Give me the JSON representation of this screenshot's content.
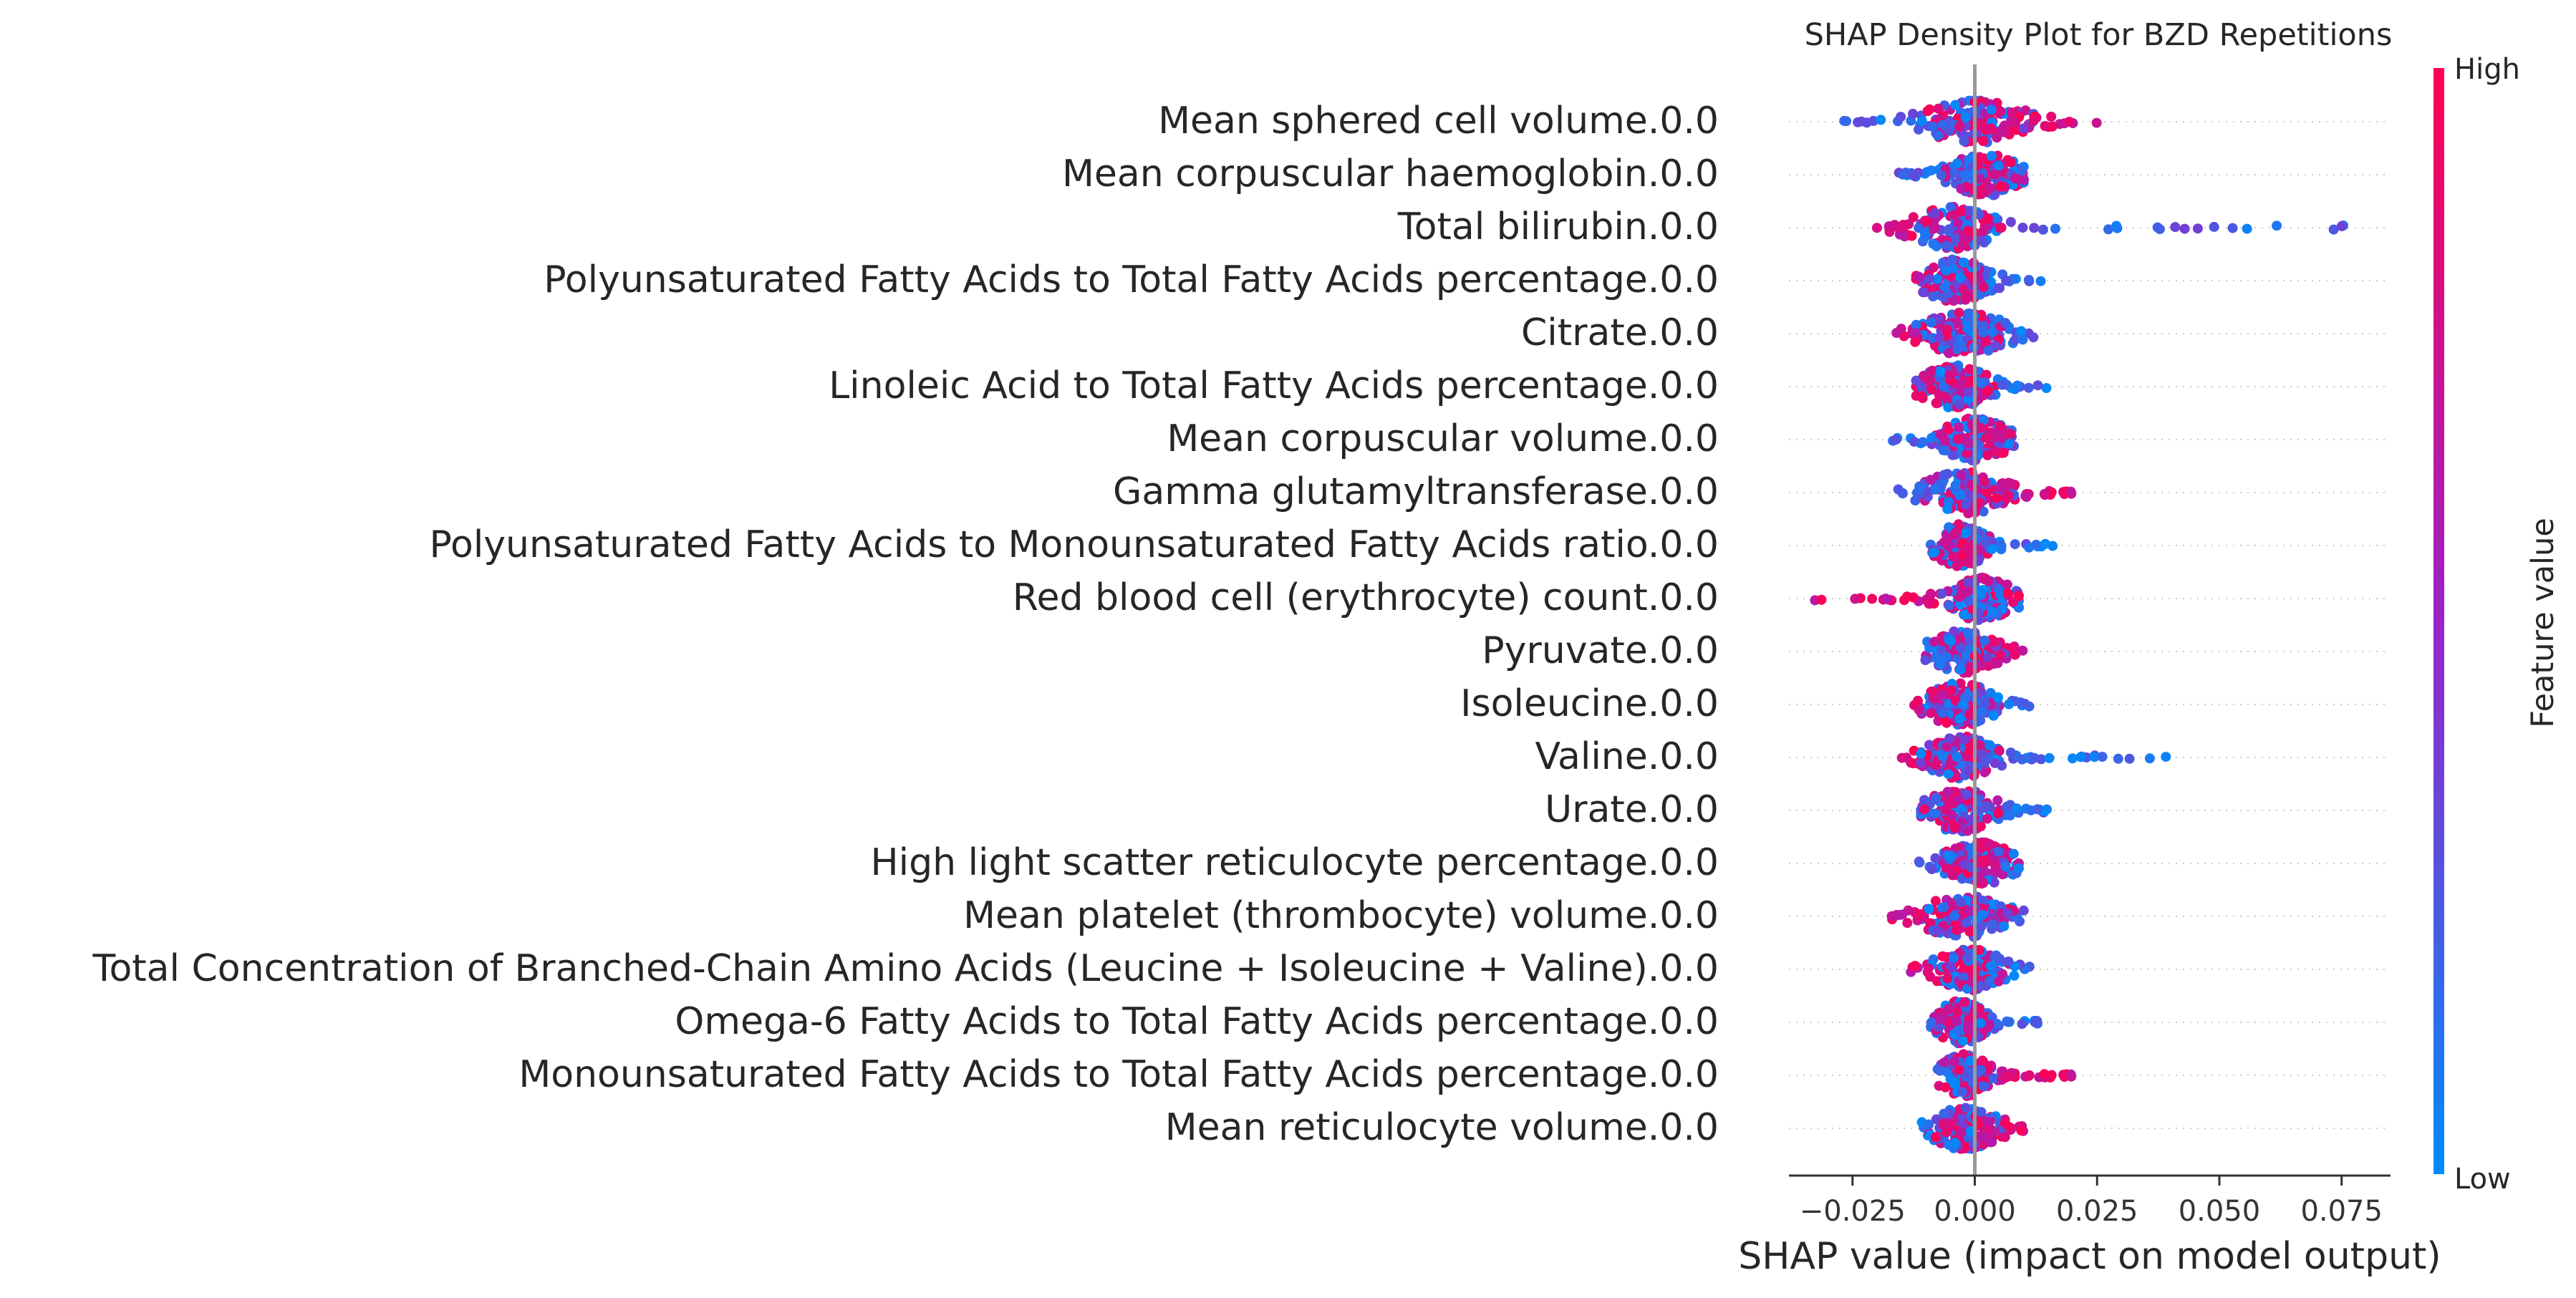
{
  "chart_data": {
    "type": "scatter",
    "subtype": "shap-beeswarm",
    "title": "SHAP Density Plot for BZD Repetitions",
    "xlabel": "SHAP value (impact on model output)",
    "xlim": [
      -0.038,
      0.085
    ],
    "xticks": [
      -0.025,
      0.0,
      0.025,
      0.05,
      0.075
    ],
    "xtick_labels": [
      "−0.025",
      "0.000",
      "0.025",
      "0.050",
      "0.075"
    ],
    "colorbar": {
      "label": "Feature value",
      "high_label": "High",
      "low_label": "Low",
      "high_color": "#ff0052",
      "mid_color": "#9b23c8",
      "low_color": "#008bfb"
    },
    "grid": false,
    "features": [
      {
        "name": "Mean sphered cell volume.0.0",
        "low_range": [
          -0.032,
          0.0
        ],
        "high_range": [
          0.0,
          0.025
        ],
        "dir": 1,
        "center": 0.0,
        "width": 0.006
      },
      {
        "name": "Mean corpuscular haemoglobin.0.0",
        "low_range": [
          -0.02,
          0.001
        ],
        "high_range": [
          0.0,
          0.01
        ],
        "dir": 1,
        "center": 0.002,
        "width": 0.004
      },
      {
        "name": "Total bilirubin.0.0",
        "low_range": [
          -0.003,
          0.079
        ],
        "high_range": [
          -0.02,
          -0.002
        ],
        "dir": -1,
        "center": -0.004,
        "width": 0.005
      },
      {
        "name": "Polyunsaturated Fatty Acids to Total Fatty Acids percentage.0.0",
        "low_range": [
          0.0,
          0.015
        ],
        "high_range": [
          -0.01,
          0.0
        ],
        "dir": -1,
        "center": -0.004,
        "width": 0.004
      },
      {
        "name": "Citrate.0.0",
        "low_range": [
          -0.002,
          0.012
        ],
        "high_range": [
          -0.016,
          0.0
        ],
        "dir": -1,
        "center": -0.002,
        "width": 0.005
      },
      {
        "name": "Linoleic Acid to Total Fatty Acids percentage.0.0",
        "low_range": [
          0.0,
          0.018
        ],
        "high_range": [
          -0.012,
          0.0
        ],
        "dir": -1,
        "center": -0.004,
        "width": 0.004
      },
      {
        "name": "Mean corpuscular volume.0.0",
        "low_range": [
          -0.017,
          0.001
        ],
        "high_range": [
          0.0,
          0.006
        ],
        "dir": 1,
        "center": 0.0,
        "width": 0.004
      },
      {
        "name": "Gamma glutamyltransferase.0.0",
        "low_range": [
          -0.016,
          0.0
        ],
        "high_range": [
          0.0,
          0.02
        ],
        "dir": 1,
        "center": -0.002,
        "width": 0.005
      },
      {
        "name": "Polyunsaturated Fatty Acids to Monounsaturated Fatty Acids ratio.0.0",
        "low_range": [
          0.0,
          0.016
        ],
        "high_range": [
          -0.006,
          0.0
        ],
        "dir": -1,
        "center": -0.003,
        "width": 0.003
      },
      {
        "name": "Red blood cell (erythrocyte) count.0.0",
        "low_range": [
          0.0,
          0.006
        ],
        "high_range": [
          -0.033,
          0.0
        ],
        "dir": -1,
        "center": 0.001,
        "width": 0.004
      },
      {
        "name": "Pyruvate.0.0",
        "low_range": [
          -0.012,
          0.0
        ],
        "high_range": [
          0.0,
          0.011
        ],
        "dir": 1,
        "center": -0.002,
        "width": 0.004
      },
      {
        "name": "Isoleucine.0.0",
        "low_range": [
          0.0,
          0.012
        ],
        "high_range": [
          -0.013,
          0.0
        ],
        "dir": -1,
        "center": -0.003,
        "width": 0.004
      },
      {
        "name": "Valine.0.0",
        "low_range": [
          0.0,
          0.041
        ],
        "high_range": [
          -0.015,
          0.0
        ],
        "dir": -1,
        "center": -0.003,
        "width": 0.004
      },
      {
        "name": "Urate.0.0",
        "low_range": [
          0.0,
          0.015
        ],
        "high_range": [
          -0.009,
          0.0
        ],
        "dir": -1,
        "center": -0.003,
        "width": 0.004
      },
      {
        "name": "High light scatter reticulocyte percentage.0.0",
        "low_range": [
          -0.013,
          0.001
        ],
        "high_range": [
          0.0,
          0.007
        ],
        "dir": 1,
        "center": 0.001,
        "width": 0.004
      },
      {
        "name": "Mean platelet (thrombocyte) volume.0.0",
        "low_range": [
          0.0,
          0.01
        ],
        "high_range": [
          -0.017,
          0.0
        ],
        "dir": -1,
        "center": -0.002,
        "width": 0.005
      },
      {
        "name": "Total Concentration of Branched-Chain Amino Acids (Leucine + Isoleucine + Valine).0.0",
        "low_range": [
          0.0,
          0.012
        ],
        "high_range": [
          -0.014,
          0.0
        ],
        "dir": -1,
        "center": -0.001,
        "width": 0.004
      },
      {
        "name": "Omega-6 Fatty Acids to Total Fatty Acids percentage.0.0",
        "low_range": [
          0.0,
          0.013
        ],
        "high_range": [
          -0.007,
          0.0
        ],
        "dir": -1,
        "center": -0.003,
        "width": 0.003
      },
      {
        "name": "Monounsaturated Fatty Acids to Total Fatty Acids percentage.0.0",
        "low_range": [
          -0.005,
          0.0
        ],
        "high_range": [
          0.0,
          0.02
        ],
        "dir": 1,
        "center": -0.002,
        "width": 0.003
      },
      {
        "name": "Mean reticulocyte volume.0.0",
        "low_range": [
          -0.012,
          0.0
        ],
        "high_range": [
          0.0,
          0.01
        ],
        "dir": 1,
        "center": -0.002,
        "width": 0.004
      }
    ]
  }
}
